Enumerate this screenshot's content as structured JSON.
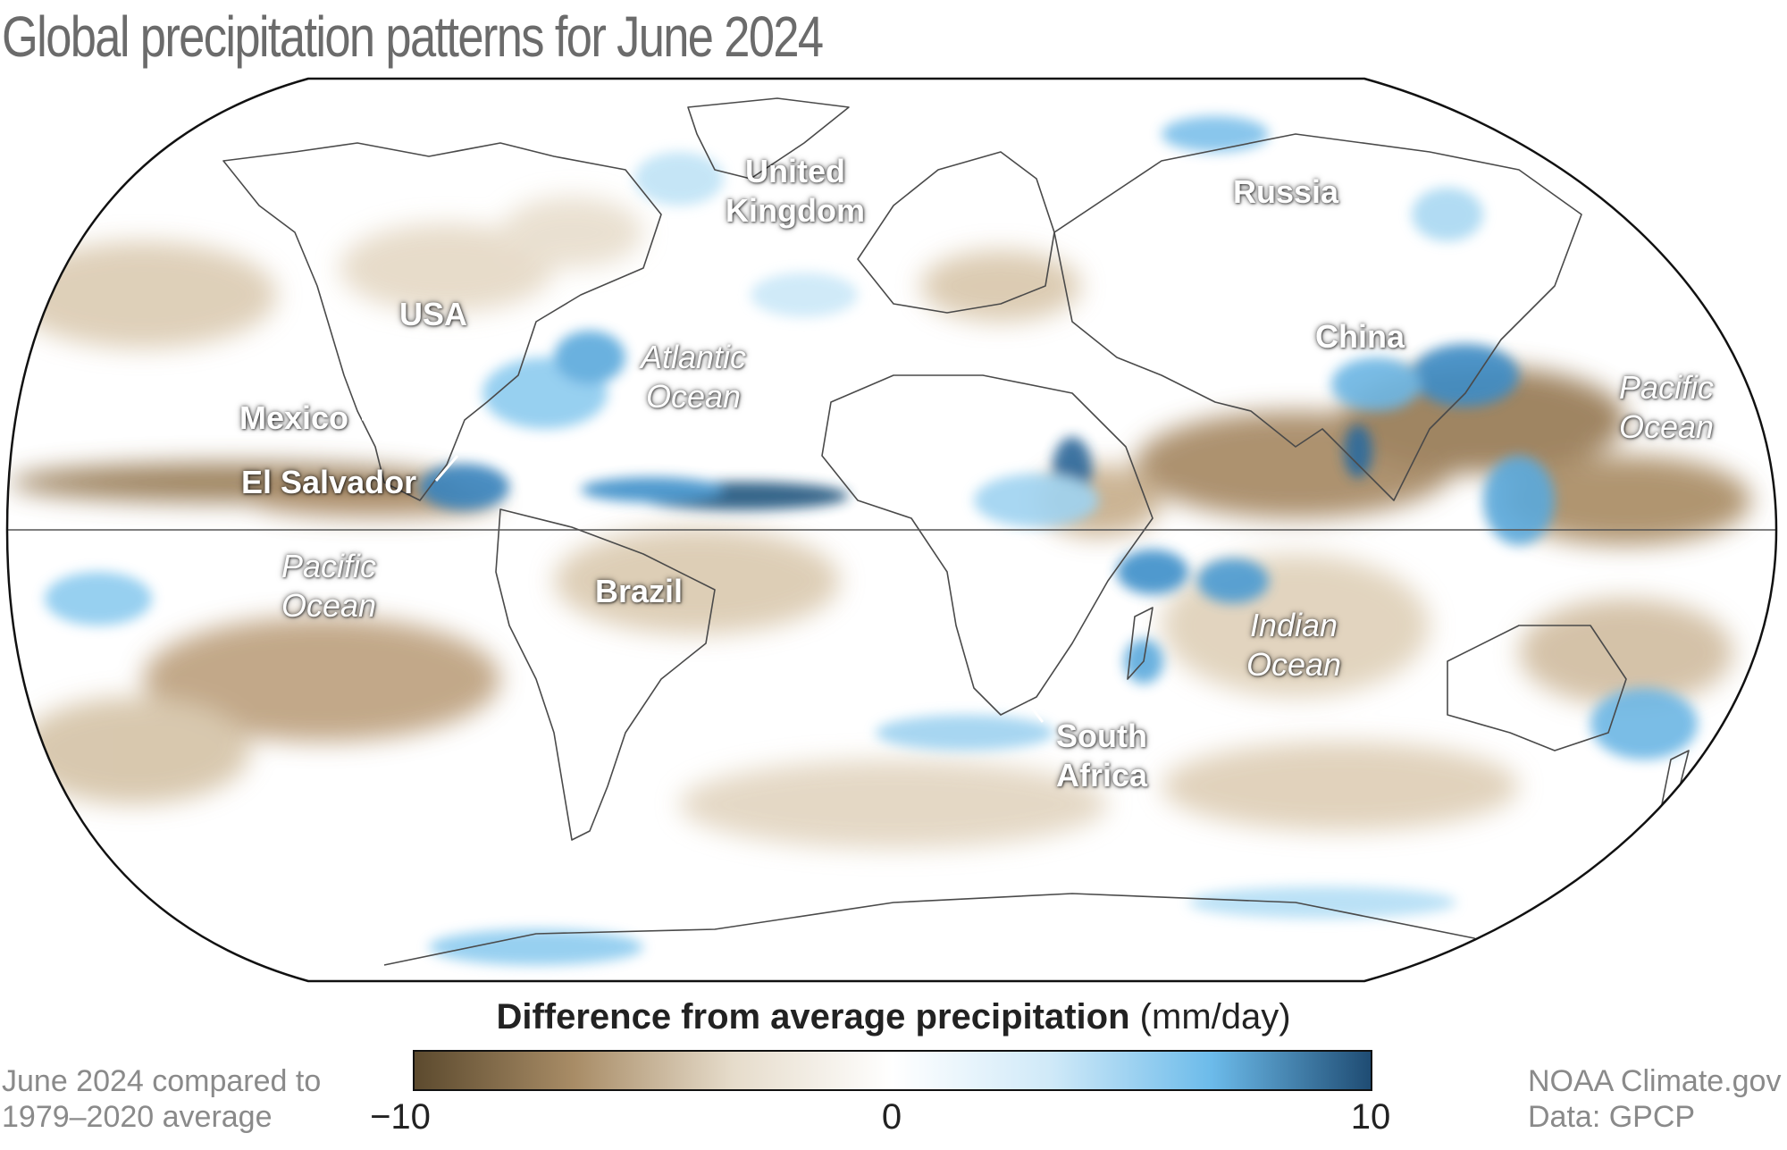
{
  "title": "Global precipitation patterns for June 2024",
  "labels": {
    "uk_line1": "United",
    "uk_line2": "Kingdom",
    "russia": "Russia",
    "usa": "USA",
    "china": "China",
    "atlantic_line1": "Atlantic",
    "atlantic_line2": "Ocean",
    "pacific_ne_line1": "Pacific",
    "pacific_ne_line2": "Ocean",
    "mexico": "Mexico",
    "el_salvador": "El Salvador",
    "pacific_sw_line1": "Pacific",
    "pacific_sw_line2": "Ocean",
    "brazil": "Brazil",
    "indian_line1": "Indian",
    "indian_line2": "Ocean",
    "south_africa_line1": "South",
    "south_africa_line2": "Africa"
  },
  "legend": {
    "title_bold": "Difference from average precipitation",
    "title_unit": "(mm/day)",
    "min": "−10",
    "mid": "0",
    "max": "10",
    "colors": {
      "dry_dark": "#5c4a2e",
      "dry_mid": "#a88c66",
      "dry_light": "#e6dccb",
      "neutral": "#ffffff",
      "wet_light": "#cfe9f8",
      "wet_mid": "#6cbbea",
      "wet_dark": "#1f4c73"
    }
  },
  "footer": {
    "left_line1": "June 2024 compared to",
    "left_line2": "1979–2020 average",
    "right_line1": "NOAA Climate.gov",
    "right_line2": "Data: GPCP"
  }
}
